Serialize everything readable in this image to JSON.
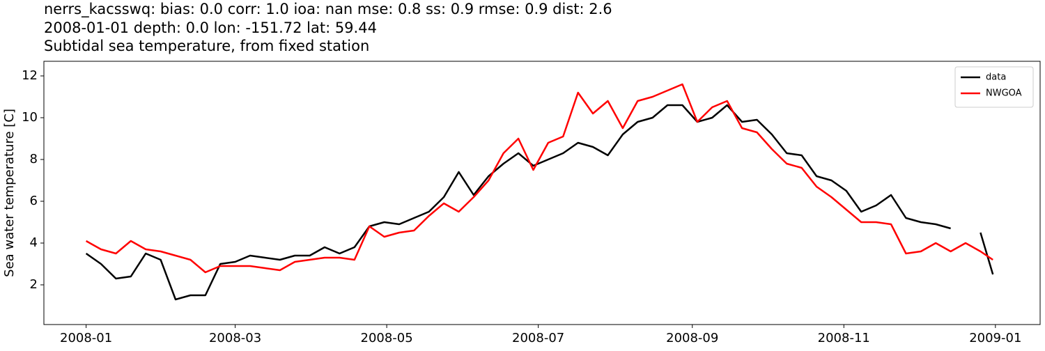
{
  "chart_data": {
    "type": "line",
    "title": [
      "nerrs_kacsswq: bias: 0.0  corr: 1.0  ioa: nan  mse: 0.8  ss: 0.9  rmse: 0.9  dist: 2.6",
      "2008-01-01 depth: 0.0 lon: -151.72 lat: 59.44",
      "Subtidal sea temperature, from fixed station"
    ],
    "ylabel": "Sea water temperature [C]",
    "x": [
      "2008-01-01",
      "2008-01-07",
      "2008-01-13",
      "2008-01-19",
      "2008-01-25",
      "2008-01-31",
      "2008-02-06",
      "2008-02-12",
      "2008-02-18",
      "2008-02-24",
      "2008-03-01",
      "2008-03-07",
      "2008-03-13",
      "2008-03-19",
      "2008-03-25",
      "2008-03-31",
      "2008-04-06",
      "2008-04-12",
      "2008-04-18",
      "2008-04-24",
      "2008-04-30",
      "2008-05-06",
      "2008-05-12",
      "2008-05-18",
      "2008-05-24",
      "2008-05-30",
      "2008-06-05",
      "2008-06-11",
      "2008-06-17",
      "2008-06-23",
      "2008-06-29",
      "2008-07-05",
      "2008-07-11",
      "2008-07-17",
      "2008-07-23",
      "2008-07-29",
      "2008-08-04",
      "2008-08-10",
      "2008-08-16",
      "2008-08-22",
      "2008-08-28",
      "2008-09-03",
      "2008-09-09",
      "2008-09-15",
      "2008-09-21",
      "2008-09-27",
      "2008-10-03",
      "2008-10-09",
      "2008-10-15",
      "2008-10-21",
      "2008-10-27",
      "2008-11-02",
      "2008-11-08",
      "2008-11-14",
      "2008-11-20",
      "2008-11-26",
      "2008-12-02",
      "2008-12-08",
      "2008-12-14",
      "2008-12-20",
      "2008-12-26",
      "2008-12-31"
    ],
    "series": [
      {
        "name": "data",
        "color": "#000000",
        "values": [
          3.5,
          3.0,
          2.3,
          2.4,
          3.5,
          3.2,
          1.3,
          1.5,
          1.5,
          3.0,
          3.1,
          3.4,
          3.3,
          3.2,
          3.4,
          3.4,
          3.8,
          3.5,
          3.8,
          4.8,
          5.0,
          4.9,
          5.2,
          5.5,
          6.2,
          7.4,
          6.3,
          7.2,
          7.8,
          8.3,
          7.7,
          8.0,
          8.3,
          8.8,
          8.6,
          8.2,
          9.2,
          9.8,
          10.0,
          10.6,
          10.6,
          9.8,
          10.0,
          10.6,
          9.8,
          9.9,
          9.2,
          8.3,
          8.2,
          7.2,
          7.0,
          6.5,
          5.5,
          5.8,
          6.3,
          5.2,
          5.0,
          4.9,
          4.7,
          null,
          4.5,
          2.5
        ]
      },
      {
        "name": "NWGOA",
        "color": "#ff0000",
        "values": [
          4.1,
          3.7,
          3.5,
          4.1,
          3.7,
          3.6,
          3.4,
          3.2,
          2.6,
          2.9,
          2.9,
          2.9,
          2.8,
          2.7,
          3.1,
          3.2,
          3.3,
          3.3,
          3.2,
          4.8,
          4.3,
          4.5,
          4.6,
          5.3,
          5.9,
          5.5,
          6.2,
          7.0,
          8.3,
          9.0,
          7.5,
          8.8,
          9.1,
          11.2,
          10.2,
          10.8,
          9.5,
          10.8,
          11.0,
          11.3,
          11.6,
          9.8,
          10.5,
          10.8,
          9.5,
          9.3,
          8.5,
          7.8,
          7.6,
          6.7,
          6.2,
          5.6,
          5.0,
          5.0,
          4.9,
          3.5,
          3.6,
          4.0,
          3.6,
          4.0,
          3.6,
          3.2
        ]
      }
    ],
    "xlim": [
      "2007-12-15",
      "2009-01-19"
    ],
    "xticks": [
      {
        "value": "2008-01-01",
        "label": "2008-01"
      },
      {
        "value": "2008-03-01",
        "label": "2008-03"
      },
      {
        "value": "2008-05-01",
        "label": "2008-05"
      },
      {
        "value": "2008-07-01",
        "label": "2008-07"
      },
      {
        "value": "2008-09-01",
        "label": "2008-09"
      },
      {
        "value": "2008-11-01",
        "label": "2008-11"
      },
      {
        "value": "2009-01-01",
        "label": "2009-01"
      }
    ],
    "ylim": [
      0.1,
      12.7
    ],
    "yticks": [
      2,
      4,
      6,
      8,
      10,
      12
    ],
    "grid": false,
    "legend": "upper right"
  }
}
